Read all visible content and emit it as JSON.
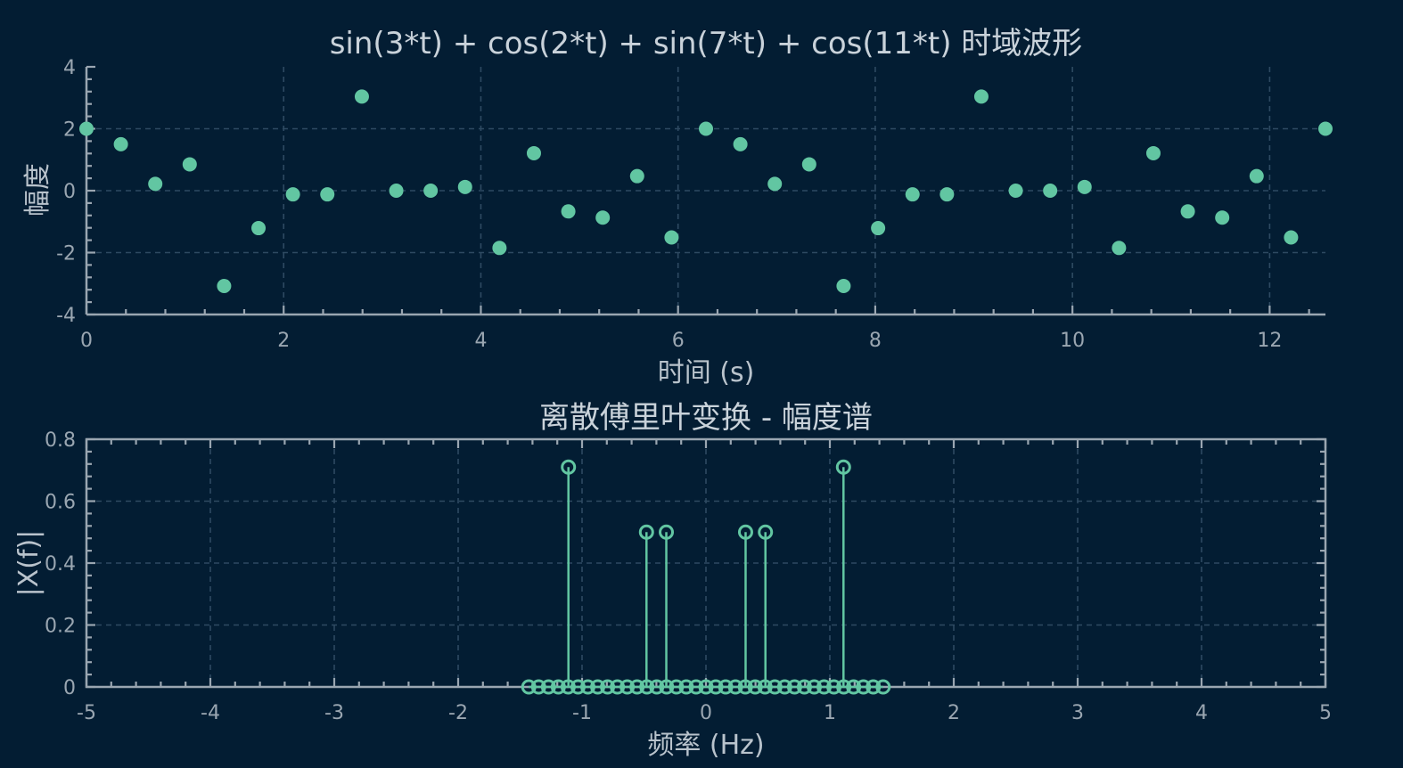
{
  "theme": {
    "background": "#031d33",
    "axis_color": "#9aa6b1",
    "grid_color": "#2e4a62",
    "marker_color": "#62c6a2"
  },
  "chart_data": [
    {
      "type": "scatter",
      "title": "sin(3*t) + cos(2*t) + sin(7*t) + cos(11*t) 时域波形",
      "xlabel": "时间 (s)",
      "ylabel": "幅度",
      "xlim": [
        0,
        12.566
      ],
      "ylim": [
        -4,
        4
      ],
      "xticks": [
        0,
        2,
        4,
        6,
        8,
        10,
        12
      ],
      "xtick_labels": [
        "0",
        "2",
        "4",
        "6",
        "8",
        "10",
        "12"
      ],
      "yticks": [
        -4,
        -2,
        0,
        2,
        4
      ],
      "ytick_labels": [
        "-4",
        "-2",
        "0",
        "2",
        "4"
      ],
      "grid": true,
      "series": [
        {
          "x": [
            0,
            0.349,
            0.698,
            1.047,
            1.396,
            1.745,
            2.094,
            2.443,
            2.793,
            3.142,
            3.491,
            3.84,
            4.189,
            4.538,
            4.887,
            5.236,
            5.585,
            5.934,
            6.283,
            6.632,
            6.981,
            7.33,
            7.679,
            8.029,
            8.378,
            8.727,
            9.076,
            9.425,
            9.774,
            10.123,
            10.472,
            10.821,
            11.17,
            11.519,
            11.868,
            12.217,
            12.566
          ],
          "y": [
            2.0,
            1.5,
            0.22,
            0.85,
            -3.08,
            -1.21,
            -0.12,
            -0.12,
            3.04,
            0.0,
            0.0,
            0.12,
            -1.85,
            1.21,
            -0.67,
            -0.87,
            0.47,
            -1.51,
            2.0,
            1.5,
            0.22,
            0.85,
            -3.08,
            -1.21,
            -0.12,
            -0.12,
            3.04,
            0.0,
            0.0,
            0.12,
            -1.85,
            1.21,
            -0.67,
            -0.87,
            0.47,
            -1.51,
            2.0
          ]
        }
      ]
    },
    {
      "type": "stem",
      "title": "离散傅里叶变换 - 幅度谱",
      "xlabel": "频率 (Hz)",
      "ylabel": "|X(f)|",
      "xlim": [
        -5,
        5
      ],
      "ylim": [
        0,
        0.8
      ],
      "xticks": [
        -5,
        -4,
        -3,
        -2,
        -1,
        0,
        1,
        2,
        3,
        4,
        5
      ],
      "xtick_labels": [
        "-5",
        "-4",
        "-3",
        "-2",
        "-1",
        "0",
        "1",
        "2",
        "3",
        "4",
        "5"
      ],
      "yticks": [
        0,
        0.2,
        0.4,
        0.6,
        0.8
      ],
      "ytick_labels": [
        "0",
        "0.2",
        "0.4",
        "0.6",
        "0.8"
      ],
      "grid": true,
      "baseline_range": [
        -1.43,
        1.43
      ],
      "baseline_count": 37,
      "peaks": [
        {
          "f": -1.11,
          "mag": 0.71
        },
        {
          "f": -0.48,
          "mag": 0.5
        },
        {
          "f": -0.32,
          "mag": 0.5
        },
        {
          "f": 0.32,
          "mag": 0.5
        },
        {
          "f": 0.48,
          "mag": 0.5
        },
        {
          "f": 1.11,
          "mag": 0.71
        }
      ]
    }
  ]
}
